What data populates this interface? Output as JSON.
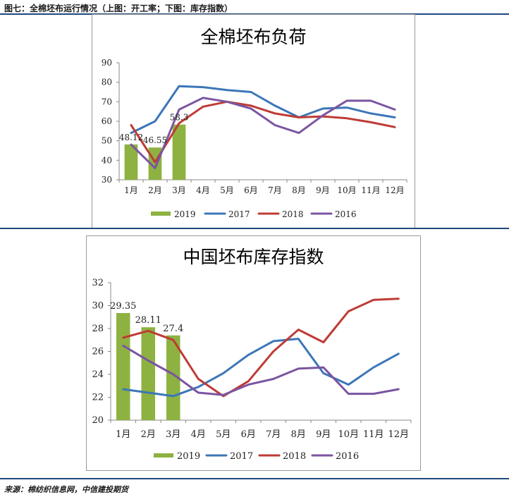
{
  "figure_title": "图七：全棉坯布运行情况（上图：开工率；下图：库存指数）",
  "source": "来源：棉纺织信息网，中信建投期货",
  "colors": {
    "c2019": "#8db241",
    "c2017": "#3c76b8",
    "c2018": "#be3b36",
    "c2016": "#7b55a0"
  },
  "chart_data": [
    {
      "type": "bar+line",
      "title": "全棉坯布负荷",
      "categories": [
        "1月",
        "2月",
        "3月",
        "4月",
        "5月",
        "6月",
        "7月",
        "8月",
        "9月",
        "10月",
        "11月",
        "12月"
      ],
      "ylim": [
        30,
        90
      ],
      "yticks": [
        "30",
        "40",
        "50",
        "60",
        "70",
        "80",
        "90"
      ],
      "bars": {
        "name": "2019",
        "values": [
          48.12,
          46.55,
          58.3
        ],
        "labels": [
          "48.12",
          "46.55",
          "58.3"
        ]
      },
      "series": [
        {
          "name": "2017",
          "values": [
            54,
            60,
            78,
            77.5,
            76,
            75,
            68,
            62,
            66.5,
            67,
            64,
            62
          ]
        },
        {
          "name": "2018",
          "values": [
            58,
            39,
            59,
            67.5,
            70,
            68,
            64,
            62,
            62.5,
            61.5,
            59.5,
            57
          ]
        },
        {
          "name": "2016",
          "values": [
            48,
            36,
            66,
            72,
            70,
            66.5,
            58,
            54,
            63,
            70.5,
            70.5,
            66
          ]
        }
      ],
      "legend": [
        "2019",
        "2017",
        "2018",
        "2016"
      ]
    },
    {
      "type": "bar+line",
      "title": "中国坯布库存指数",
      "categories": [
        "1月",
        "2月",
        "3月",
        "4月",
        "5月",
        "6月",
        "7月",
        "8月",
        "9月",
        "10月",
        "11月",
        "12月"
      ],
      "ylim": [
        20,
        32
      ],
      "yticks": [
        "20",
        "22",
        "24",
        "26",
        "28",
        "30",
        "32"
      ],
      "bars": {
        "name": "2019",
        "values": [
          29.35,
          28.11,
          27.4
        ],
        "labels": [
          "29.35",
          "28.11",
          "27.4"
        ]
      },
      "series": [
        {
          "name": "2017",
          "values": [
            22.7,
            22.4,
            22.1,
            22.9,
            24.1,
            25.7,
            26.9,
            27.1,
            24.1,
            23.1,
            24.6,
            25.8
          ]
        },
        {
          "name": "2018",
          "values": [
            27.2,
            27.8,
            27.0,
            23.6,
            22.1,
            23.4,
            26.0,
            27.9,
            26.8,
            29.5,
            30.5,
            30.6
          ]
        },
        {
          "name": "2016",
          "values": [
            26.5,
            25.2,
            24.0,
            22.4,
            22.2,
            23.1,
            23.6,
            24.5,
            24.6,
            22.3,
            22.3,
            22.7
          ]
        }
      ],
      "legend": [
        "2019",
        "2017",
        "2018",
        "2016"
      ]
    }
  ]
}
